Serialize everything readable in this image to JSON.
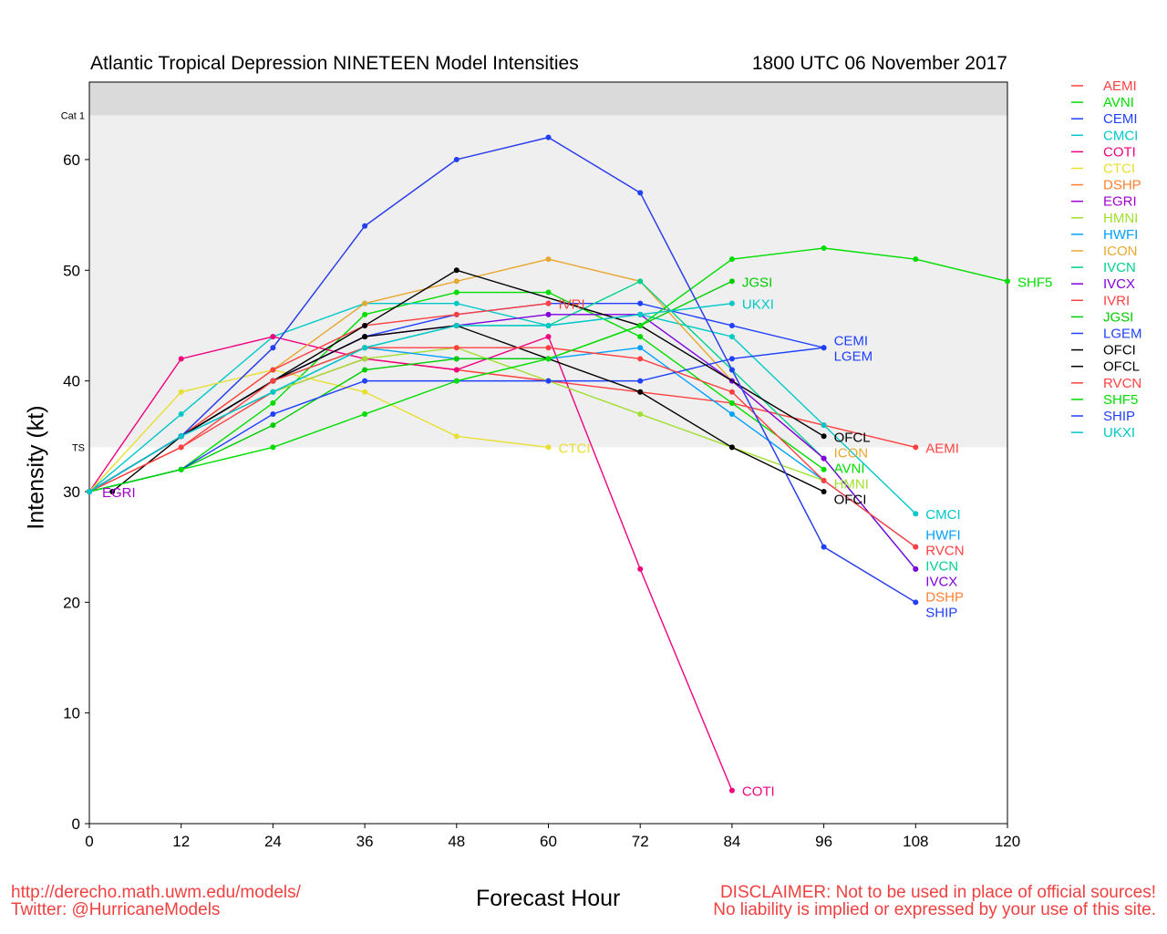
{
  "chart_data": {
    "type": "line",
    "title": "Atlantic Tropical Depression NINETEEN Model Intensities",
    "subtitle": "1800 UTC 06 November 2017",
    "xlabel": "Forecast Hour",
    "ylabel": "Intensity (kt)",
    "xlim": [
      0,
      120
    ],
    "ylim": [
      0,
      67
    ],
    "xticks": [
      0,
      12,
      24,
      36,
      48,
      60,
      72,
      84,
      96,
      108,
      120
    ],
    "yticks": [
      0,
      10,
      20,
      30,
      40,
      50,
      60
    ],
    "bands": [
      {
        "label": "TS",
        "from": 34,
        "to": 64,
        "color": "#efefef"
      },
      {
        "label": "Cat 1",
        "from": 64,
        "to": 67,
        "color": "#dadada"
      }
    ],
    "legend_position": "right",
    "series": [
      {
        "name": "AEMI",
        "color": "#ff4040",
        "x": [
          0,
          12,
          24,
          36,
          48,
          60,
          72,
          84,
          96,
          108
        ],
        "y": [
          30,
          34,
          39,
          42,
          41,
          40,
          39,
          38,
          36,
          34
        ]
      },
      {
        "name": "AVNI",
        "color": "#00dd00",
        "x": [
          0,
          12,
          24,
          36,
          48,
          60,
          72,
          84,
          96
        ],
        "y": [
          30,
          32,
          38,
          46,
          48,
          48,
          44,
          38,
          32
        ]
      },
      {
        "name": "CEMI",
        "color": "#2040ff",
        "x": [
          0,
          12,
          24,
          36,
          48,
          60,
          72,
          84,
          96
        ],
        "y": [
          30,
          35,
          40,
          44,
          46,
          47,
          47,
          45,
          43
        ]
      },
      {
        "name": "CMCI",
        "color": "#00c8c8",
        "x": [
          0,
          12,
          24,
          36,
          48,
          60,
          72,
          84,
          96,
          108
        ],
        "y": [
          30,
          37,
          44,
          47,
          47,
          45,
          46,
          44,
          36,
          28
        ]
      },
      {
        "name": "COTI",
        "color": "#f0007f",
        "x": [
          0,
          12,
          24,
          36,
          48,
          60,
          72,
          84
        ],
        "y": [
          30,
          42,
          44,
          42,
          41,
          44,
          23,
          3
        ]
      },
      {
        "name": "CTCI",
        "color": "#e8e030",
        "x": [
          0,
          12,
          24,
          36,
          48,
          60
        ],
        "y": [
          30,
          39,
          41,
          39,
          35,
          34
        ]
      },
      {
        "name": "DSHP",
        "color": "#ff8030",
        "x": [
          0,
          12,
          24,
          36,
          48,
          60,
          72,
          84,
          96,
          108
        ],
        "y": [
          30,
          35,
          43,
          54,
          60,
          62,
          57,
          41,
          25,
          20
        ]
      },
      {
        "name": "EGRI",
        "color": "#a000d0",
        "x": [
          0
        ],
        "y": [
          30
        ]
      },
      {
        "name": "HMNI",
        "color": "#a0e030",
        "x": [
          0,
          12,
          24,
          36,
          48,
          60,
          72,
          84,
          96
        ],
        "y": [
          30,
          35,
          39,
          42,
          43,
          40,
          37,
          34,
          31
        ]
      },
      {
        "name": "HWFI",
        "color": "#00a0ff",
        "x": [
          0,
          12,
          24,
          36,
          48,
          60,
          72,
          84,
          96,
          108
        ],
        "y": [
          30,
          35,
          39,
          43,
          42,
          42,
          43,
          37,
          31,
          25
        ]
      },
      {
        "name": "ICON",
        "color": "#e8a830",
        "x": [
          0,
          12,
          24,
          36,
          48,
          60,
          72,
          84,
          96
        ],
        "y": [
          30,
          35,
          41,
          47,
          49,
          51,
          49,
          40,
          33
        ]
      },
      {
        "name": "IVCN",
        "color": "#00d090",
        "x": [
          0,
          12,
          24,
          36,
          48,
          60,
          72,
          84,
          96,
          108
        ],
        "y": [
          30,
          35,
          40,
          43,
          45,
          45,
          49,
          41,
          33,
          23
        ]
      },
      {
        "name": "IVCX",
        "color": "#8000e0",
        "x": [
          0,
          12,
          24,
          36,
          48,
          60,
          72,
          84,
          96,
          108
        ],
        "y": [
          30,
          35,
          40,
          44,
          45,
          46,
          46,
          40,
          33,
          23
        ]
      },
      {
        "name": "IVRI",
        "color": "#ff4040",
        "x": [
          0,
          12,
          24,
          36,
          48,
          60
        ],
        "y": [
          30,
          35,
          41,
          45,
          46,
          47
        ]
      },
      {
        "name": "JGSI",
        "color": "#00cc00",
        "x": [
          0,
          12,
          24,
          36,
          48,
          60,
          72,
          84
        ],
        "y": [
          30,
          32,
          36,
          41,
          42,
          42,
          45,
          49
        ]
      },
      {
        "name": "LGEM",
        "color": "#2040ff",
        "x": [
          0,
          12,
          24,
          36,
          48,
          60,
          72,
          84,
          96
        ],
        "y": [
          30,
          32,
          37,
          40,
          40,
          40,
          40,
          42,
          43
        ]
      },
      {
        "name": "OFCI",
        "color": "#000000",
        "x": [
          0,
          12,
          24,
          36,
          48,
          72,
          84,
          96
        ],
        "y": [
          30,
          35,
          40,
          44,
          45,
          39,
          34,
          30
        ]
      },
      {
        "name": "OFCL",
        "color": "#000000",
        "x": [
          3,
          12,
          24,
          36,
          48,
          72,
          96
        ],
        "y": [
          30,
          35,
          40,
          45,
          50,
          45,
          35
        ]
      },
      {
        "name": "RVCN",
        "color": "#ff4040",
        "x": [
          0,
          12,
          24,
          36,
          48,
          60,
          72,
          84,
          96,
          108
        ],
        "y": [
          30,
          34,
          40,
          43,
          43,
          43,
          42,
          39,
          31,
          25
        ]
      },
      {
        "name": "SHF5",
        "color": "#00dd00",
        "x": [
          0,
          12,
          24,
          36,
          48,
          60,
          72,
          84,
          96,
          108,
          120
        ],
        "y": [
          30,
          32,
          34,
          37,
          40,
          42,
          45,
          51,
          52,
          51,
          49
        ]
      },
      {
        "name": "SHIP",
        "color": "#2040ff",
        "x": [
          0,
          12,
          24,
          36,
          48,
          60,
          72,
          84,
          96,
          108
        ],
        "y": [
          30,
          35,
          43,
          54,
          60,
          62,
          57,
          41,
          25,
          20
        ]
      },
      {
        "name": "UKXI",
        "color": "#00c8c8",
        "x": [
          0,
          12,
          24,
          36,
          48,
          60,
          72,
          84
        ],
        "y": [
          30,
          35,
          39,
          43,
          45,
          45,
          46,
          47
        ]
      }
    ]
  },
  "footer": {
    "url": "http://derecho.math.uwm.edu/models/",
    "twitter": "Twitter: @HurricaneModels",
    "disclaimer1": "DISCLAIMER: Not to be used in place of official sources!",
    "disclaimer2": "No liability is implied or expressed by your use of this site."
  }
}
